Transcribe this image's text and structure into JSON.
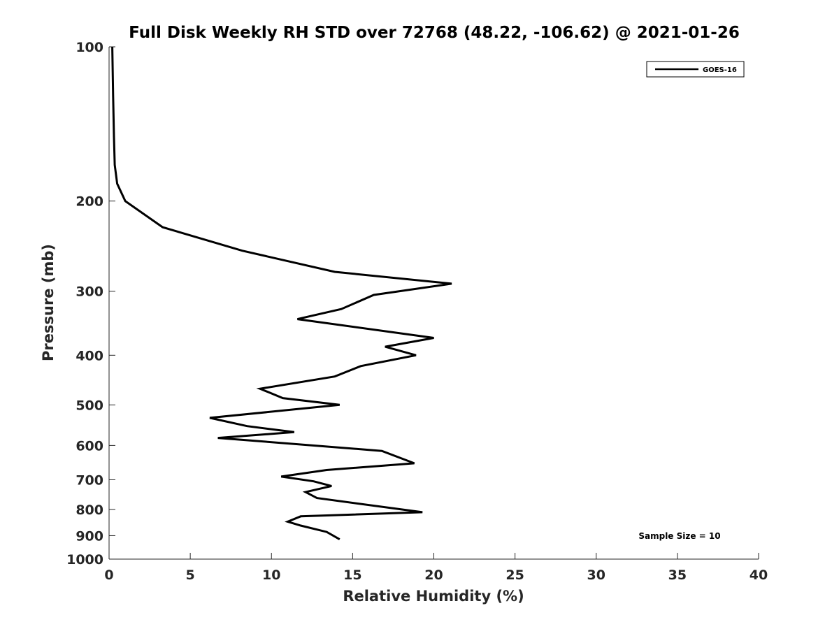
{
  "chart_data": {
    "type": "line",
    "title": "Full Disk Weekly RH STD over 72768 (48.22, -106.62) @ 2021-01-26",
    "xlabel": "Relative Humidity (%)",
    "ylabel": "Pressure (mb)",
    "xlim": [
      0,
      40
    ],
    "ylim": [
      100,
      1000
    ],
    "y_scale": "log",
    "y_reversed": true,
    "x_ticks": [
      "0",
      "5",
      "10",
      "15",
      "20",
      "25",
      "30",
      "35",
      "40"
    ],
    "y_ticks": [
      "100",
      "200",
      "300",
      "400",
      "500",
      "600",
      "700",
      "800",
      "900",
      "1000"
    ],
    "grid": false,
    "legend_position": "top-right",
    "series": [
      {
        "name": "GOES-16",
        "color": "#000000",
        "x": [
          0.2,
          0.25,
          0.3,
          0.35,
          0.5,
          1.0,
          3.3,
          8.2,
          13.9,
          21.1,
          16.3,
          14.3,
          11.6,
          20.0,
          17.0,
          18.9,
          15.5,
          13.9,
          9.3,
          10.7,
          14.2,
          6.2,
          8.5,
          11.4,
          6.7,
          16.8,
          18.8,
          13.4,
          10.6,
          12.6,
          13.7,
          12.1,
          12.8,
          19.3,
          11.8,
          11.0,
          11.8,
          13.4,
          14.2
        ],
        "y": [
          100,
          125,
          150,
          170,
          185,
          200,
          225,
          250,
          275,
          290,
          305,
          325,
          340,
          370,
          385,
          400,
          420,
          440,
          465,
          485,
          500,
          530,
          550,
          565,
          580,
          615,
          650,
          670,
          690,
          705,
          720,
          740,
          760,
          810,
          825,
          845,
          860,
          885,
          915
        ]
      }
    ],
    "annotations": [
      {
        "text": "Sample Size = 10"
      }
    ]
  }
}
